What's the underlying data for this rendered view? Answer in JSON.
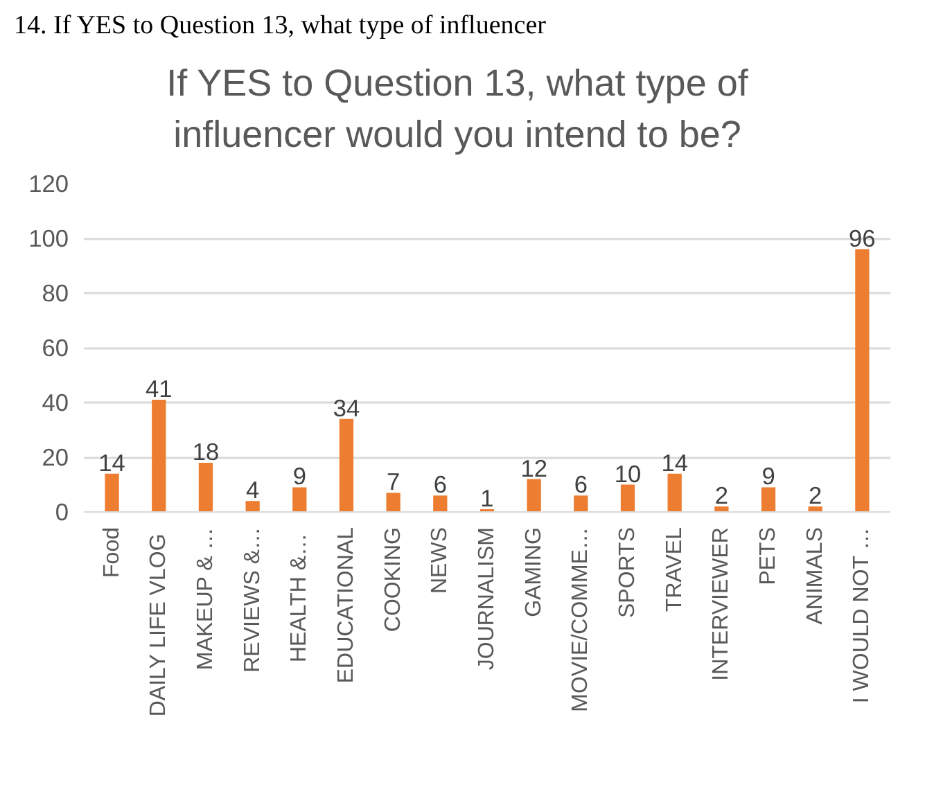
{
  "chart_data": {
    "type": "bar",
    "title": "If YES to Question 13, what type of influencer would you intend to be?",
    "annotations": [
      "14. If YES to Question 13, what type of influencer"
    ],
    "categories": [
      "Food",
      "DAILY LIFE  VLOG",
      "MAKEUP & …",
      "REVIEWS &…",
      "HEALTH  &…",
      "EDUCATIONAL",
      "COOKING",
      "NEWS",
      "JOURNALISM",
      "GAMING",
      "MOVIE/COMME…",
      "SPORTS",
      "TRAVEL",
      "INTERVIEWER",
      "PETS",
      "ANIMALS",
      "I WOULD NOT …"
    ],
    "values": [
      14,
      41,
      18,
      4,
      9,
      34,
      7,
      6,
      1,
      12,
      6,
      10,
      14,
      2,
      9,
      2,
      96
    ],
    "color": "#ed7d31",
    "ylim": [
      0,
      120
    ],
    "yticks": [
      0,
      20,
      40,
      60,
      80,
      100,
      120
    ],
    "grid": "y",
    "data_labels": true
  }
}
